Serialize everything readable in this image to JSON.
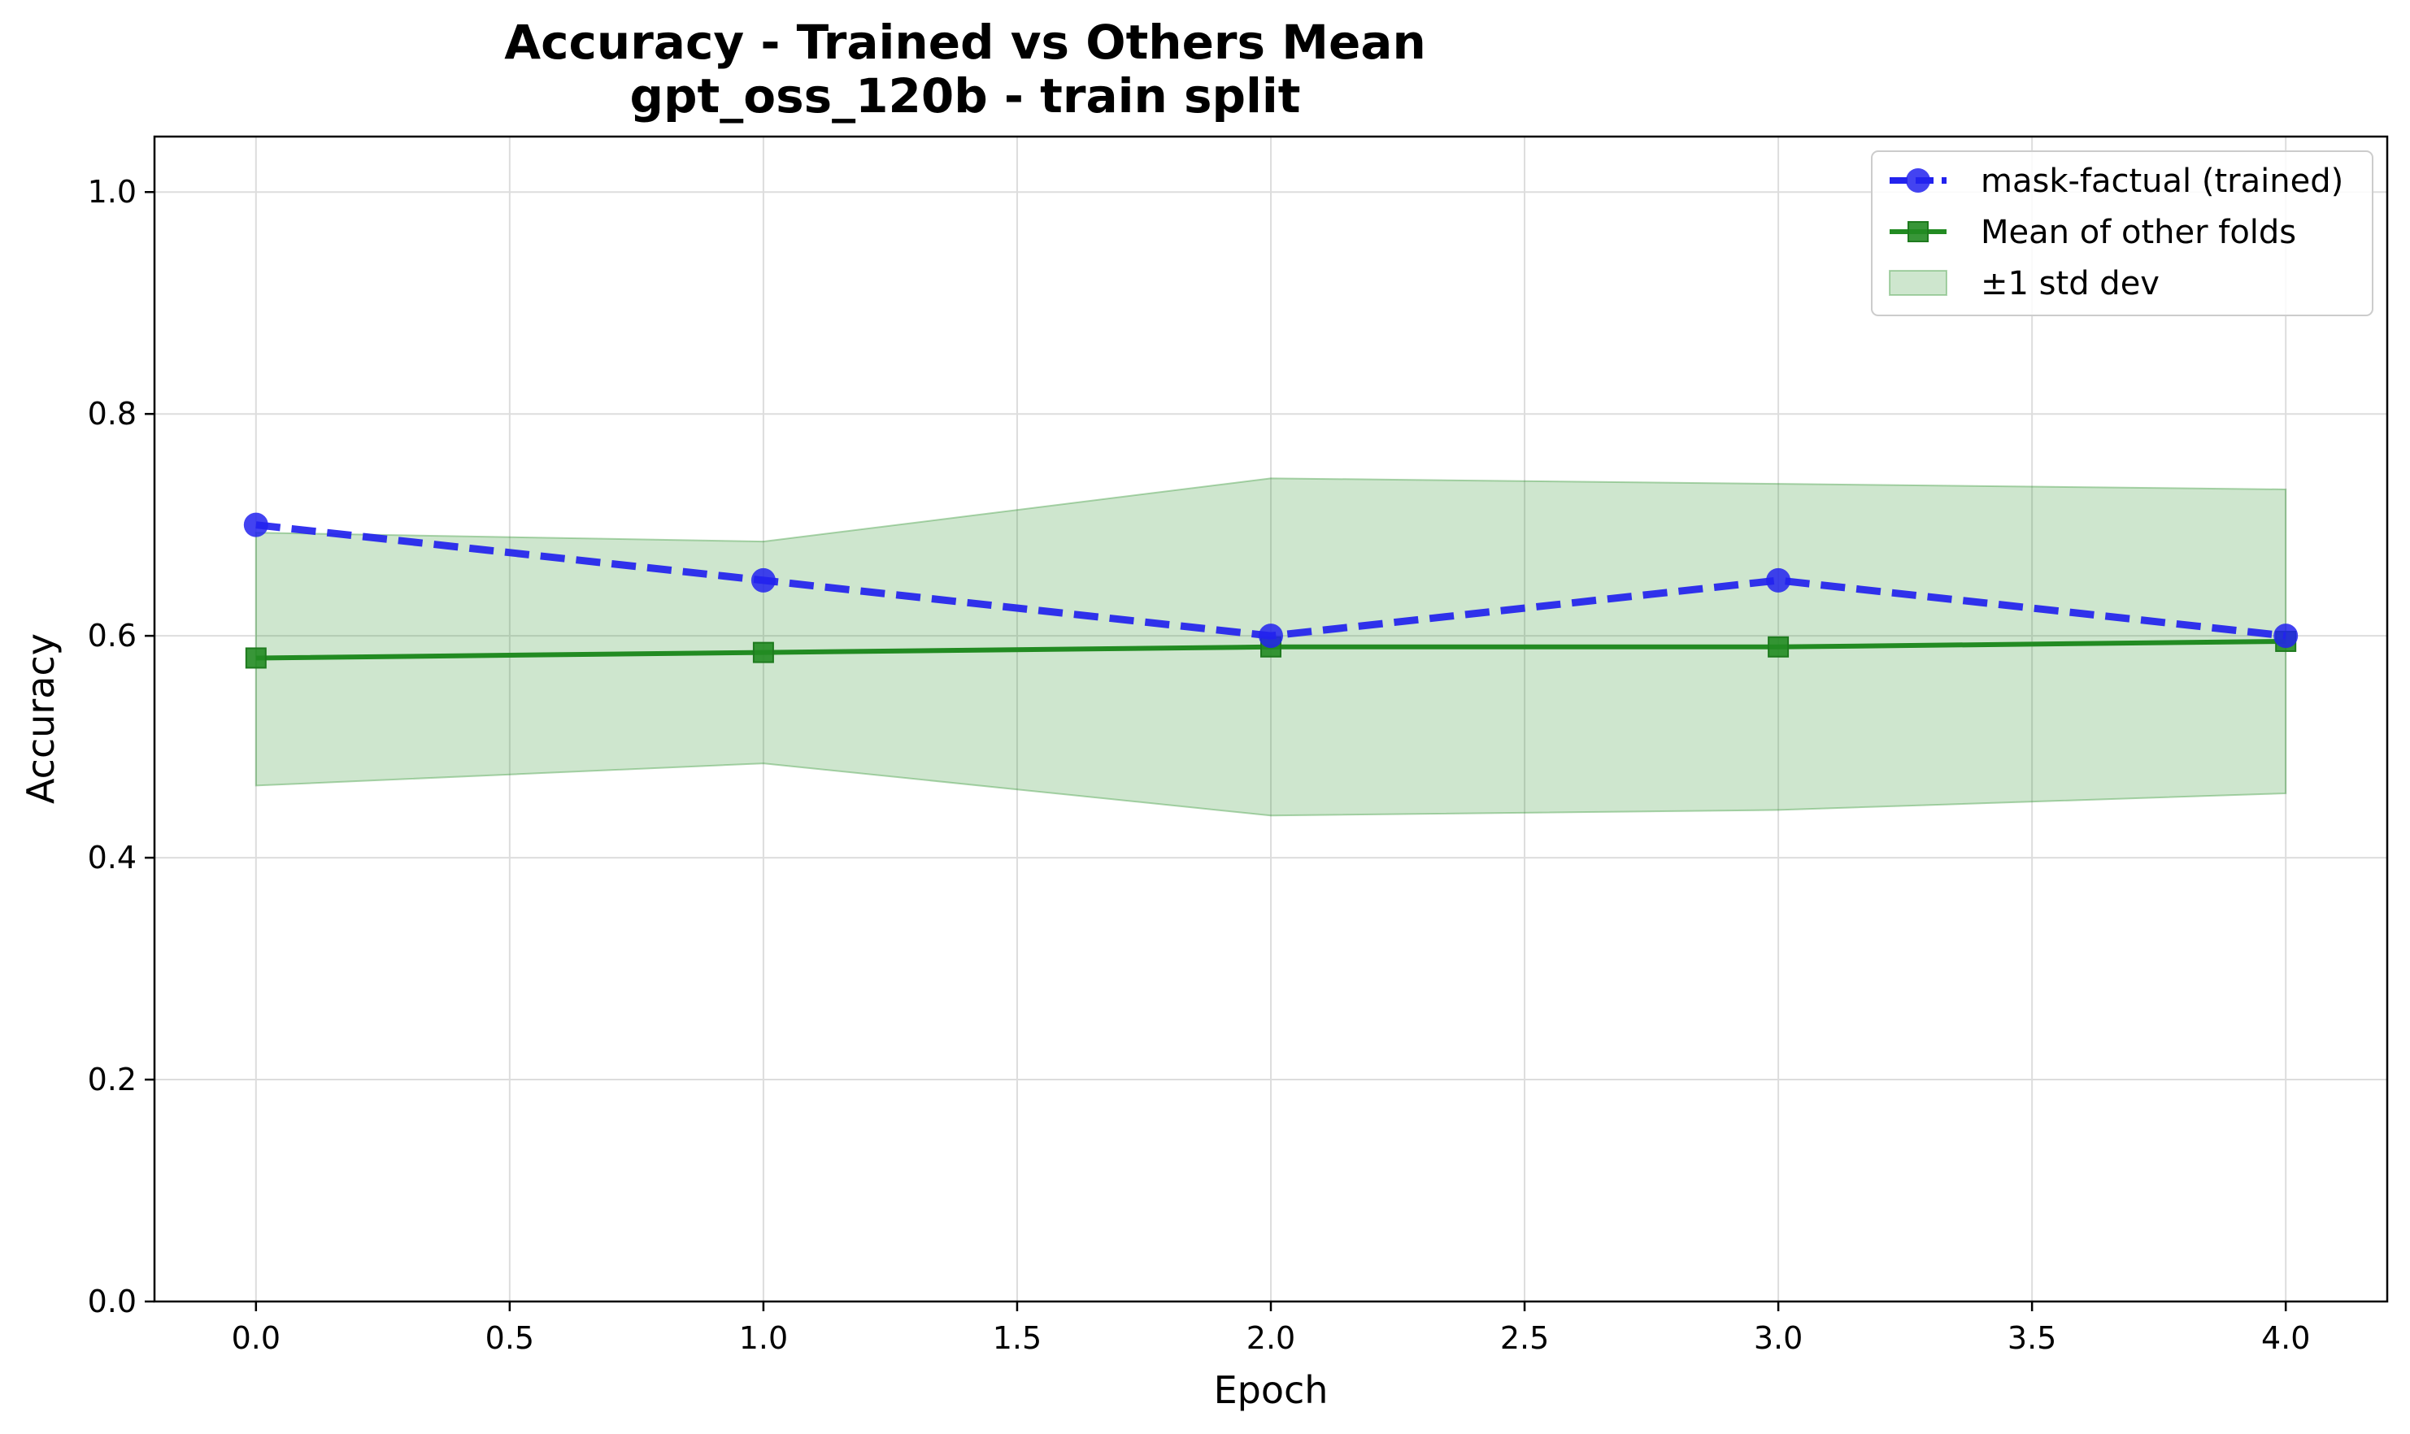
{
  "chart_data": {
    "type": "line",
    "title": "Accuracy - Trained vs Others Mean",
    "subtitle": "gpt_oss_120b - train split",
    "xlabel": "Epoch",
    "ylabel": "Accuracy",
    "xlim": [
      -0.2,
      4.2
    ],
    "ylim": [
      0.0,
      1.05
    ],
    "x_ticks": [
      "0.0",
      "0.5",
      "1.0",
      "1.5",
      "2.0",
      "2.5",
      "3.0",
      "3.5",
      "4.0"
    ],
    "y_ticks": [
      "0.0",
      "0.2",
      "0.4",
      "0.6",
      "0.8",
      "1.0"
    ],
    "grid": true,
    "legend_position": "top-right",
    "x": [
      0,
      1,
      2,
      3,
      4
    ],
    "series": [
      {
        "name": "mask-factual (trained)",
        "values": [
          0.7,
          0.65,
          0.6,
          0.65,
          0.6
        ],
        "color": "#2222ee",
        "line_style": "dashed",
        "marker": "circle"
      },
      {
        "name": "Mean of other folds",
        "values": [
          0.58,
          0.585,
          0.59,
          0.59,
          0.595
        ],
        "color": "#228b22",
        "line_style": "solid",
        "marker": "square"
      }
    ],
    "band": {
      "name": "±1 std dev",
      "lower": [
        0.465,
        0.485,
        0.438,
        0.443,
        0.458
      ],
      "upper": [
        0.693,
        0.685,
        0.742,
        0.737,
        0.732
      ],
      "color": "#228b22"
    }
  }
}
